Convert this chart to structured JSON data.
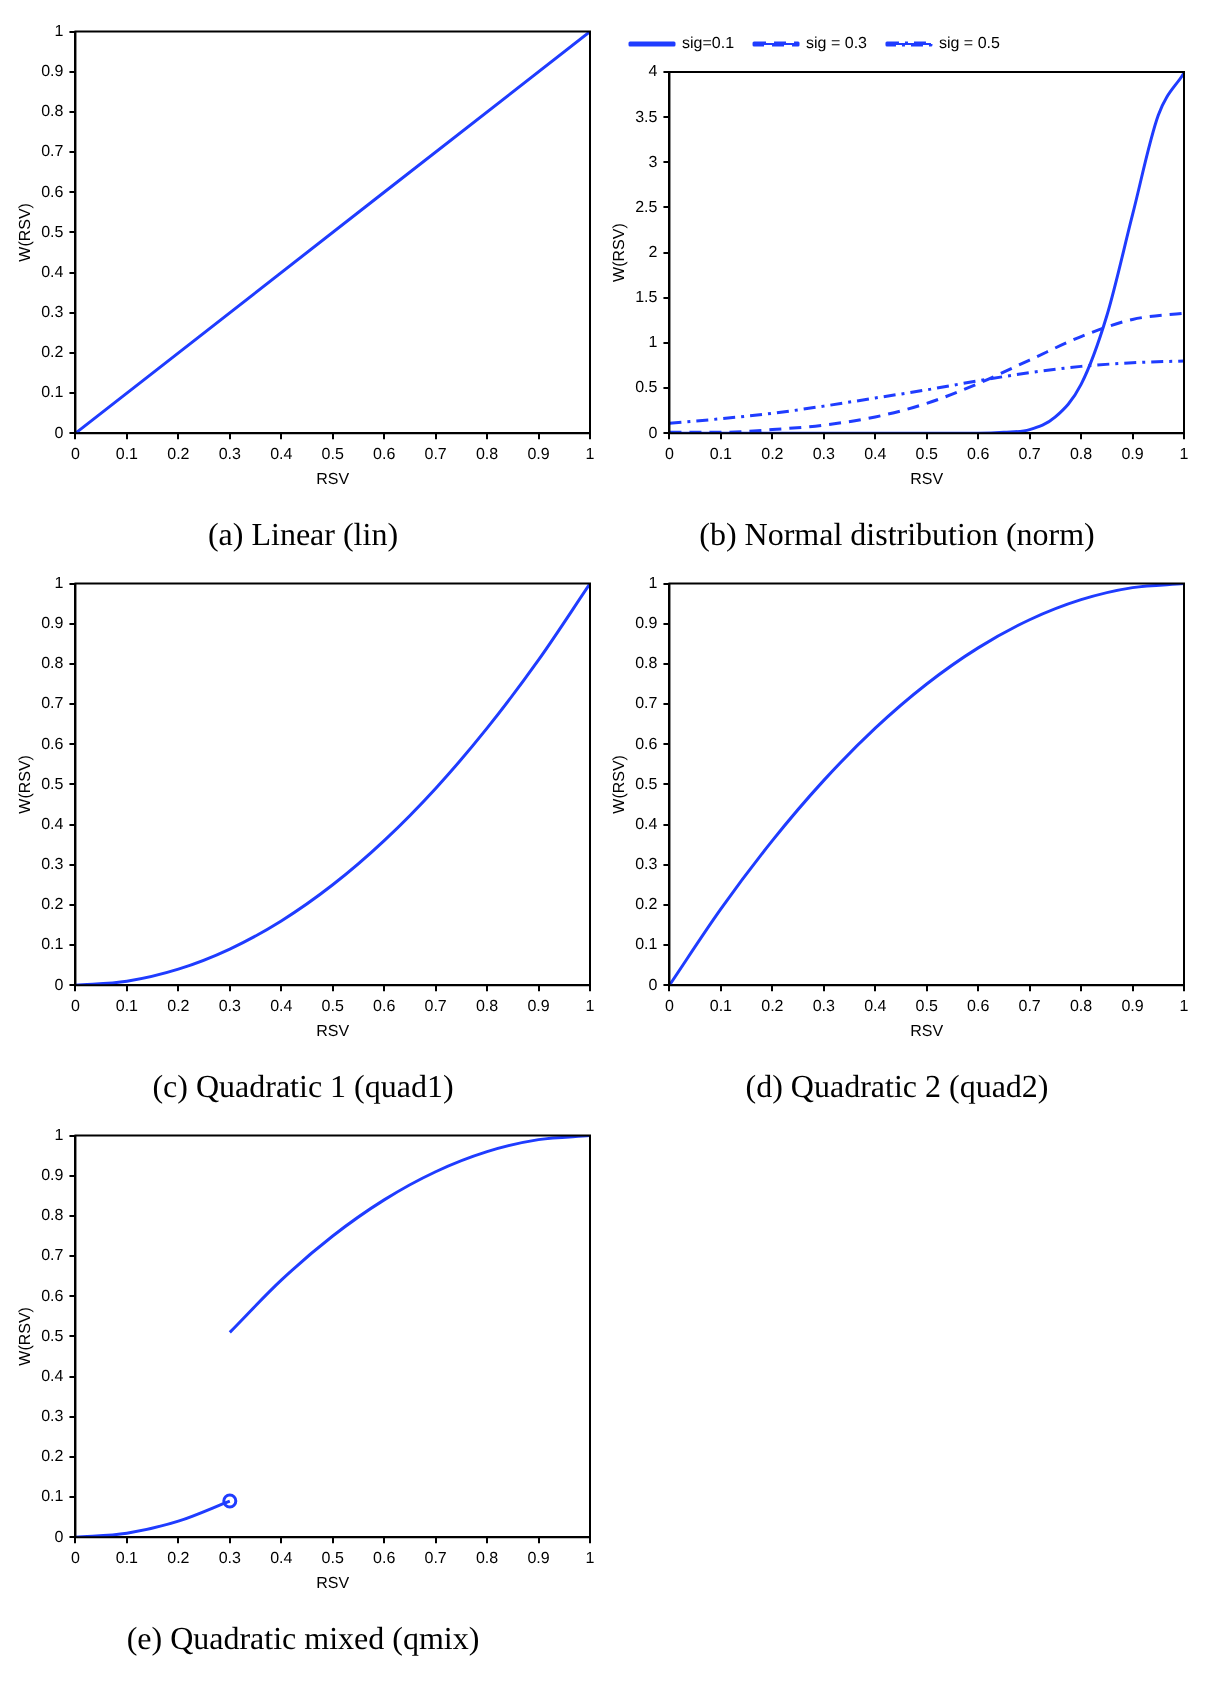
{
  "chart_data": [
    {
      "type": "line",
      "title": "(a) Linear (lin)",
      "xlabel": "RSV",
      "ylabel": "W(RSV)",
      "xlim": [
        0,
        1
      ],
      "ylim": [
        0,
        1
      ],
      "xticks": [
        0,
        0.1,
        0.2,
        0.3,
        0.4,
        0.5,
        0.6,
        0.7,
        0.8,
        0.9,
        1
      ],
      "yticks": [
        0,
        0.1,
        0.2,
        0.3,
        0.4,
        0.5,
        0.6,
        0.7,
        0.8,
        0.9,
        1
      ],
      "series": [
        {
          "color": "#1f3cff",
          "x": [
            0,
            1
          ],
          "values": [
            0,
            1
          ]
        }
      ]
    },
    {
      "type": "line",
      "title": "(b) Normal distribution (norm)",
      "xlabel": "RSV",
      "ylabel": "W(RSV)",
      "xlim": [
        0,
        1
      ],
      "ylim": [
        0,
        4
      ],
      "xticks": [
        0,
        0.1,
        0.2,
        0.3,
        0.4,
        0.5,
        0.6,
        0.7,
        0.8,
        0.9,
        1
      ],
      "yticks": [
        0,
        0.5,
        1,
        1.5,
        2,
        2.5,
        3,
        3.5,
        4
      ],
      "legend": "top left",
      "series": [
        {
          "name": "sig=0.1",
          "color": "#1f3cff",
          "line_style": "solid",
          "x": [
            0,
            0.5,
            0.6,
            0.65,
            0.7,
            0.75,
            0.8,
            0.85,
            0.9,
            0.95,
            1
          ],
          "values": [
            0,
            0,
            0,
            0.01,
            0.04,
            0.18,
            0.54,
            1.3,
            2.42,
            3.52,
            3.99
          ]
        },
        {
          "name": "sig = 0.3",
          "color": "#1f3cff",
          "line_style": "dashed",
          "x": [
            0,
            0.1,
            0.2,
            0.3,
            0.4,
            0.5,
            0.6,
            0.7,
            0.8,
            0.9,
            1
          ],
          "values": [
            0.01,
            0.01,
            0.04,
            0.09,
            0.18,
            0.33,
            0.55,
            0.81,
            1.07,
            1.26,
            1.33
          ]
        },
        {
          "name": "sig = 0.5",
          "color": "#1f3cff",
          "line_style": "dotted",
          "x": [
            0,
            0.1,
            0.2,
            0.3,
            0.4,
            0.5,
            0.6,
            0.7,
            0.8,
            0.9,
            1
          ],
          "values": [
            0.11,
            0.16,
            0.22,
            0.3,
            0.39,
            0.48,
            0.58,
            0.67,
            0.74,
            0.78,
            0.8
          ]
        }
      ]
    },
    {
      "type": "line",
      "title": "(c) Quadratic 1 (quad1)",
      "xlabel": "RSV",
      "ylabel": "W(RSV)",
      "xlim": [
        0,
        1
      ],
      "ylim": [
        0,
        1
      ],
      "xticks": [
        0,
        0.1,
        0.2,
        0.3,
        0.4,
        0.5,
        0.6,
        0.7,
        0.8,
        0.9,
        1
      ],
      "yticks": [
        0,
        0.1,
        0.2,
        0.3,
        0.4,
        0.5,
        0.6,
        0.7,
        0.8,
        0.9,
        1
      ],
      "series": [
        {
          "color": "#1f3cff",
          "x": [
            0,
            0.1,
            0.2,
            0.3,
            0.4,
            0.5,
            0.6,
            0.7,
            0.8,
            0.9,
            1
          ],
          "values": [
            0,
            0.01,
            0.04,
            0.09,
            0.16,
            0.25,
            0.36,
            0.49,
            0.64,
            0.81,
            1
          ]
        }
      ]
    },
    {
      "type": "line",
      "title": "(d) Quadratic 2 (quad2)",
      "xlabel": "RSV",
      "ylabel": "W(RSV)",
      "xlim": [
        0,
        1
      ],
      "ylim": [
        0,
        1
      ],
      "xticks": [
        0,
        0.1,
        0.2,
        0.3,
        0.4,
        0.5,
        0.6,
        0.7,
        0.8,
        0.9,
        1
      ],
      "yticks": [
        0,
        0.1,
        0.2,
        0.3,
        0.4,
        0.5,
        0.6,
        0.7,
        0.8,
        0.9,
        1
      ],
      "series": [
        {
          "color": "#1f3cff",
          "x": [
            0,
            0.1,
            0.2,
            0.3,
            0.4,
            0.5,
            0.6,
            0.7,
            0.8,
            0.9,
            1
          ],
          "values": [
            0,
            0.19,
            0.36,
            0.51,
            0.64,
            0.75,
            0.84,
            0.91,
            0.96,
            0.99,
            1
          ]
        }
      ]
    },
    {
      "type": "line",
      "title": "(e) Quadratic mixed (qmix)",
      "xlabel": "RSV",
      "ylabel": "W(RSV)",
      "xlim": [
        0,
        1
      ],
      "ylim": [
        0,
        1
      ],
      "xticks": [
        0,
        0.1,
        0.2,
        0.3,
        0.4,
        0.5,
        0.6,
        0.7,
        0.8,
        0.9,
        1
      ],
      "yticks": [
        0,
        0.1,
        0.2,
        0.3,
        0.4,
        0.5,
        0.6,
        0.7,
        0.8,
        0.9,
        1
      ],
      "series": [
        {
          "color": "#1f3cff",
          "x": [
            0,
            0.1,
            0.2,
            0.3
          ],
          "values": [
            0,
            0.01,
            0.04,
            0.09
          ]
        },
        {
          "type": "scatter",
          "marker": "circle",
          "color": "#1f3cff",
          "x": [
            0.3
          ],
          "values": [
            0.09
          ]
        },
        {
          "color": "#1f3cff",
          "x": [
            0.3,
            0.4,
            0.5,
            0.6,
            0.7,
            0.8,
            0.9,
            1
          ],
          "values": [
            0.51,
            0.64,
            0.75,
            0.84,
            0.91,
            0.96,
            0.99,
            1
          ]
        }
      ]
    }
  ]
}
